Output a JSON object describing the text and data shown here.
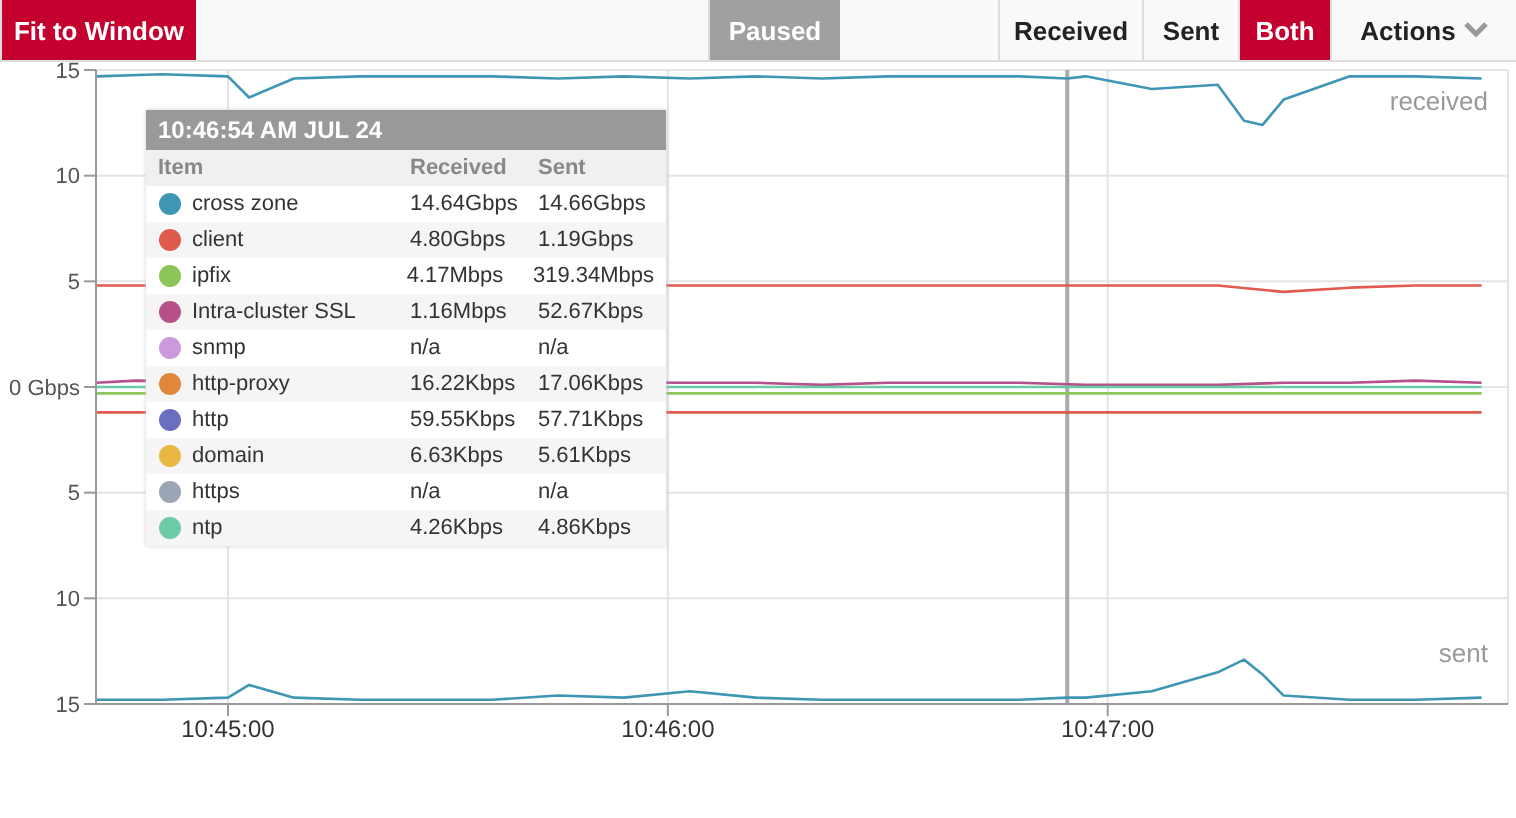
{
  "chart_data": {
    "type": "line",
    "xlim": [
      10.745,
      10.7985
    ],
    "xticks": [
      {
        "value": 10.75,
        "label": "10:45:00"
      },
      {
        "value": 10.766667,
        "label": "10:46:00"
      },
      {
        "value": 10.783333,
        "label": "10:47:00"
      }
    ],
    "ylim": [
      -15,
      15
    ],
    "yticks": [
      {
        "value": 15,
        "label": "15"
      },
      10,
      5,
      {
        "value": 0,
        "label": "0 Gbps"
      },
      {
        "value": -5,
        "label": "5"
      },
      {
        "value": -10,
        "label": "10"
      },
      {
        "value": -15,
        "label": "15"
      }
    ],
    "grid": true,
    "legend": "left",
    "ref_lines": [
      {
        "axis": "x",
        "value": 10.7818,
        "color": "#aaaaaa"
      }
    ],
    "series": [
      {
        "name": "cross zone",
        "color": "#3f96b4",
        "x": [
          10.745,
          10.7475,
          10.75,
          10.7508,
          10.7525,
          10.755,
          10.7575,
          10.76,
          10.7625,
          10.765,
          10.7675,
          10.77,
          10.7725,
          10.775,
          10.7775,
          10.78,
          10.7818,
          10.7825,
          10.785,
          10.7875,
          10.7885,
          10.7892,
          10.79,
          10.7925,
          10.795,
          10.7975
        ],
        "values": [
          14.7,
          14.8,
          14.7,
          13.7,
          14.6,
          14.7,
          14.7,
          14.7,
          14.6,
          14.7,
          14.6,
          14.7,
          14.6,
          14.7,
          14.7,
          14.7,
          14.6,
          14.7,
          14.1,
          14.3,
          12.6,
          12.4,
          13.6,
          14.7,
          14.7,
          14.6
        ]
      },
      {
        "name": "client",
        "color": "#e05a4e",
        "x": [
          10.745,
          10.7465,
          10.7675,
          10.77,
          10.7725,
          10.775,
          10.7775,
          10.78,
          10.7825,
          10.785,
          10.7875,
          10.79,
          10.7925,
          10.795,
          10.7975
        ],
        "values": [
          4.8,
          4.8,
          4.8,
          4.8,
          4.8,
          4.8,
          4.8,
          4.8,
          4.8,
          4.8,
          4.8,
          4.5,
          4.7,
          4.8,
          4.8
        ]
      },
      {
        "name": "ipfix",
        "color": "#8cc65a",
        "x": [
          10.745,
          10.7465,
          10.7675,
          10.77,
          10.7725,
          10.775,
          10.7775,
          10.78,
          10.7825,
          10.785,
          10.7875,
          10.79,
          10.7925,
          10.795,
          10.7975
        ],
        "values": [
          -0.3,
          -0.3,
          -0.3,
          -0.3,
          -0.3,
          -0.3,
          -0.3,
          -0.3,
          -0.3,
          -0.3,
          -0.3,
          -0.3,
          -0.3,
          -0.3,
          -0.3
        ]
      },
      {
        "name": "Intra-cluster SSL",
        "color": "#b5508a",
        "x": [
          10.745,
          10.7465,
          10.7675,
          10.77,
          10.7725,
          10.775,
          10.7775,
          10.78,
          10.7825,
          10.785,
          10.7875,
          10.79,
          10.7925,
          10.795,
          10.7975
        ],
        "values": [
          0.2,
          0.3,
          0.2,
          0.2,
          0.1,
          0.2,
          0.2,
          0.2,
          0.1,
          0.1,
          0.1,
          0.2,
          0.2,
          0.3,
          0.2
        ]
      },
      {
        "name": "snmp",
        "color": "#cc99dd",
        "values": [
          null
        ]
      },
      {
        "name": "http-proxy",
        "color": "#e0873a",
        "values": [
          null
        ]
      },
      {
        "name": "http",
        "color": "#6b6fc0",
        "values": [
          null
        ]
      },
      {
        "name": "domain",
        "color": "#eab842",
        "values": [
          null
        ]
      },
      {
        "name": "https",
        "color": "#9aa5b8",
        "values": [
          null
        ]
      },
      {
        "name": "ntp",
        "color": "#6ccaa6",
        "x": [
          10.745,
          10.7465,
          10.7675,
          10.77,
          10.7725,
          10.775,
          10.7775,
          10.78,
          10.7825,
          10.785,
          10.7875,
          10.79,
          10.7925,
          10.795,
          10.7975
        ],
        "values": [
          0,
          0,
          0,
          0,
          0,
          0,
          0,
          0,
          0,
          0,
          0,
          0,
          0,
          0,
          0
        ]
      },
      {
        "color": "#3f96b4",
        "x": [
          10.745,
          10.7475,
          10.75,
          10.7508,
          10.7525,
          10.755,
          10.7575,
          10.76,
          10.7625,
          10.765,
          10.7675,
          10.77,
          10.7725,
          10.775,
          10.7775,
          10.78,
          10.7818,
          10.7825,
          10.785,
          10.7875,
          10.7885,
          10.7892,
          10.79,
          10.7925,
          10.795,
          10.7975
        ],
        "values": [
          -14.8,
          -14.8,
          -14.7,
          -14.1,
          -14.7,
          -14.8,
          -14.8,
          -14.8,
          -14.6,
          -14.7,
          -14.4,
          -14.7,
          -14.8,
          -14.8,
          -14.8,
          -14.8,
          -14.7,
          -14.7,
          -14.4,
          -13.5,
          -12.9,
          -13.6,
          -14.6,
          -14.8,
          -14.8,
          -14.7
        ]
      },
      {
        "color": "#e05a4e",
        "x": [
          10.745,
          10.7465,
          10.7675,
          10.77,
          10.7725,
          10.775,
          10.7775,
          10.78,
          10.7825,
          10.785,
          10.7875,
          10.79,
          10.7925,
          10.795,
          10.7975
        ],
        "values": [
          -1.2,
          -1.2,
          -1.2,
          -1.2,
          -1.2,
          -1.2,
          -1.2,
          -1.2,
          -1.2,
          -1.2,
          -1.2,
          -1.2,
          -1.2,
          -1.2,
          -1.2
        ]
      }
    ],
    "annotations": [
      "10:46:54 AM  JUL 24",
      "Item",
      "Received",
      "Sent",
      "14.64Gbps",
      "14.66Gbps",
      "4.80Gbps",
      "1.19Gbps",
      "4.17Mbps",
      "319.34Mbps",
      "1.16Mbps",
      "52.67Kbps",
      "n/a",
      "n/a",
      "16.22Kbps",
      "17.06Kbps",
      "59.55Kbps",
      "57.71Kbps",
      "6.63Kbps",
      "5.61Kbps",
      "n/a",
      "n/a",
      "4.26Kbps",
      "4.86Kbps",
      "Fit to Window",
      "Paused",
      "Received",
      "Sent",
      "Both",
      "Actions",
      "received",
      "sent"
    ]
  }
}
